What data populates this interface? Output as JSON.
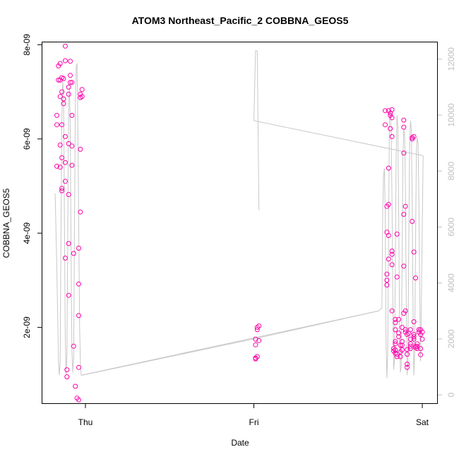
{
  "chart_data": {
    "type": "scatter",
    "title": "ATOM3 Northeast_Pacific_2 COBBNA_GEOS5",
    "xlabel": "Date",
    "ylabel": "COBBNA_GEOS5",
    "x_ticks": [
      "Thu",
      "Fri",
      "Sat"
    ],
    "x_tick_values": [
      0,
      1,
      2
    ],
    "y_left": {
      "range": [
        3.9e-10,
        8.05e-09
      ],
      "ticks": [
        2e-09,
        4e-09,
        6e-09,
        8e-09
      ],
      "tick_labels": [
        "2e-09",
        "4e-09",
        "6e-09",
        "8e-09"
      ]
    },
    "y_right": {
      "range": [
        -300,
        12600
      ],
      "ticks": [
        0,
        2000,
        4000,
        6000,
        8000,
        10000,
        12000
      ],
      "tick_labels": [
        "0",
        "2000",
        "4000",
        "6000",
        "8000",
        "10000",
        "12000"
      ],
      "color": "#c0c0c0"
    },
    "grid": false,
    "series": [
      {
        "kind": "points",
        "axis": "left",
        "color": "#ff00aa",
        "points": [
          [
            -0.17,
            6.5e-09
          ],
          [
            -0.17,
            6.3e-09
          ],
          [
            -0.17,
            5.42e-09
          ],
          [
            -0.16,
            7.55e-09
          ],
          [
            -0.16,
            7.25e-09
          ],
          [
            -0.15,
            7.6e-09
          ],
          [
            -0.15,
            7.25e-09
          ],
          [
            -0.15,
            6.9e-09
          ],
          [
            -0.15,
            5.87e-09
          ],
          [
            -0.15,
            5.4e-09
          ],
          [
            -0.14,
            7.3e-09
          ],
          [
            -0.14,
            7e-09
          ],
          [
            -0.14,
            6.3e-09
          ],
          [
            -0.14,
            5.6e-09
          ],
          [
            -0.14,
            4.95e-09
          ],
          [
            -0.14,
            4.9e-09
          ],
          [
            -0.13,
            7.28e-09
          ],
          [
            -0.13,
            6.85e-09
          ],
          [
            -0.13,
            6.75e-09
          ],
          [
            -0.12,
            7.97e-09
          ],
          [
            -0.12,
            7.66e-09
          ],
          [
            -0.12,
            6.05e-09
          ],
          [
            -0.12,
            5.5e-09
          ],
          [
            -0.12,
            5.1e-09
          ],
          [
            -0.12,
            3.47e-09
          ],
          [
            -0.11,
            1.1e-09
          ],
          [
            -0.11,
            9.5e-10
          ],
          [
            -0.1,
            3.78e-09
          ],
          [
            -0.1,
            2.68e-09
          ],
          [
            -0.1,
            4.82e-09
          ],
          [
            -0.1,
            7.1e-09
          ],
          [
            -0.1,
            6.95e-09
          ],
          [
            -0.1,
            5.9e-09
          ],
          [
            -0.09,
            7.65e-09
          ],
          [
            -0.09,
            7.35e-09
          ],
          [
            -0.09,
            7.2e-09
          ],
          [
            -0.08,
            7.2e-09
          ],
          [
            -0.08,
            6.5e-09
          ],
          [
            -0.08,
            5.85e-09
          ],
          [
            -0.08,
            5.44e-09
          ],
          [
            -0.07,
            3.57e-09
          ],
          [
            -0.07,
            1.6e-09
          ],
          [
            -0.06,
            7.5e-10
          ],
          [
            -0.05,
            5e-10
          ],
          [
            -0.04,
            4.6e-10
          ],
          [
            -0.04,
            1.15e-09
          ],
          [
            -0.04,
            2.25e-09
          ],
          [
            -0.04,
            2.92e-09
          ],
          [
            -0.04,
            3.68e-09
          ],
          [
            -0.03,
            4.45e-09
          ],
          [
            -0.03,
            5.78e-09
          ],
          [
            -0.03,
            6.88e-09
          ],
          [
            -0.03,
            6.95e-09
          ],
          [
            -0.02,
            7.05e-09
          ],
          [
            -0.02,
            6.9e-09
          ],
          [
            1.01,
            1.35e-09
          ],
          [
            1.01,
            1.33e-09
          ],
          [
            1.01,
            1.63e-09
          ],
          [
            1.01,
            1.75e-09
          ],
          [
            1.02,
            1.38e-09
          ],
          [
            1.02,
            1.95e-09
          ],
          [
            1.02,
            2e-09
          ],
          [
            1.03,
            2.03e-09
          ],
          [
            1.03,
            1.72e-09
          ],
          [
            1.78,
            6.6e-09
          ],
          [
            1.78,
            6.3e-09
          ],
          [
            1.79,
            4.57e-09
          ],
          [
            1.79,
            4.02e-09
          ],
          [
            1.79,
            3.13e-09
          ],
          [
            1.79,
            3e-09
          ],
          [
            1.79,
            2.9e-09
          ],
          [
            1.8,
            5.38e-09
          ],
          [
            1.8,
            4.61e-09
          ],
          [
            1.8,
            3.95e-09
          ],
          [
            1.8,
            3.45e-09
          ],
          [
            1.8,
            6.6e-09
          ],
          [
            1.81,
            6.55e-09
          ],
          [
            1.81,
            6.5e-09
          ],
          [
            1.81,
            6.22e-09
          ],
          [
            1.82,
            6.62e-09
          ],
          [
            1.82,
            6.45e-09
          ],
          [
            1.82,
            6.05e-09
          ],
          [
            1.82,
            3.62e-09
          ],
          [
            1.82,
            3.55e-09
          ],
          [
            1.82,
            3.33e-09
          ],
          [
            1.82,
            2.35e-09
          ],
          [
            1.83,
            1.55e-09
          ],
          [
            1.83,
            1.5e-09
          ],
          [
            1.84,
            1.45e-09
          ],
          [
            1.84,
            1.7e-09
          ],
          [
            1.84,
            2.1e-09
          ],
          [
            1.84,
            2.17e-09
          ],
          [
            1.84,
            1.95e-09
          ],
          [
            1.84,
            1.65e-09
          ],
          [
            1.84,
            1.52e-09
          ],
          [
            1.85,
            3.98e-09
          ],
          [
            1.85,
            3.07e-09
          ],
          [
            1.85,
            1.38e-09
          ],
          [
            1.85,
            1.43e-09
          ],
          [
            1.86,
            2.17e-09
          ],
          [
            1.86,
            1.88e-09
          ],
          [
            1.86,
            1.8e-09
          ],
          [
            1.87,
            1.62e-09
          ],
          [
            1.87,
            1.48e-09
          ],
          [
            1.87,
            1.38e-09
          ],
          [
            1.88,
            1.62e-09
          ],
          [
            1.88,
            2e-09
          ],
          [
            1.88,
            1.7e-09
          ],
          [
            1.88,
            1.52e-09
          ],
          [
            1.89,
            6.4e-09
          ],
          [
            1.89,
            5.7e-09
          ],
          [
            1.89,
            4.4e-09
          ],
          [
            1.89,
            3.3e-09
          ],
          [
            1.89,
            2.3e-09
          ],
          [
            1.89,
            6.25e-09
          ],
          [
            1.9,
            4.57e-09
          ],
          [
            1.9,
            2.35e-09
          ],
          [
            1.9,
            1.95e-09
          ],
          [
            1.9,
            1.9e-09
          ],
          [
            1.91,
            1.85e-09
          ],
          [
            1.91,
            1.53e-09
          ],
          [
            1.91,
            1.43e-09
          ],
          [
            1.91,
            1.22e-09
          ],
          [
            1.91,
            1.15e-09
          ],
          [
            1.92,
            1.87e-09
          ],
          [
            1.93,
            1.95e-09
          ],
          [
            1.93,
            1.75e-09
          ],
          [
            1.93,
            1.65e-09
          ],
          [
            1.93,
            1.6e-09
          ],
          [
            1.93,
            1.55e-09
          ],
          [
            1.94,
            6.03e-09
          ],
          [
            1.94,
            6e-09
          ],
          [
            1.94,
            4.25e-09
          ],
          [
            1.95,
            3.6e-09
          ],
          [
            1.95,
            2.12e-09
          ],
          [
            1.95,
            1.85e-09
          ],
          [
            1.95,
            1.8e-09
          ],
          [
            1.95,
            1.75e-09
          ],
          [
            1.95,
            6.05e-09
          ],
          [
            1.96,
            3.05e-09
          ],
          [
            1.96,
            1.6e-09
          ],
          [
            1.96,
            1.57e-09
          ],
          [
            1.97,
            1.65e-09
          ],
          [
            1.97,
            1.55e-09
          ],
          [
            1.97,
            1.6e-09
          ],
          [
            1.98,
            1.95e-09
          ],
          [
            1.98,
            1.9e-09
          ],
          [
            1.99,
            1.85e-09
          ],
          [
            1.99,
            1.95e-09
          ],
          [
            1.99,
            1.55e-09
          ],
          [
            1.99,
            1.42e-09
          ],
          [
            2.0,
            1.9e-09
          ],
          [
            2.0,
            1.75e-09
          ]
        ]
      },
      {
        "kind": "line",
        "axis": "right",
        "color": "#c8c8c8",
        "points": [
          [
            -0.18,
            7200
          ],
          [
            -0.17,
            4500
          ],
          [
            -0.16,
            1200
          ],
          [
            -0.155,
            700
          ],
          [
            -0.15,
            1200
          ],
          [
            -0.145,
            6000
          ],
          [
            -0.14,
            9800
          ],
          [
            -0.135,
            11200
          ],
          [
            -0.13,
            10800
          ],
          [
            -0.125,
            6500
          ],
          [
            -0.12,
            2200
          ],
          [
            -0.115,
            700
          ],
          [
            -0.11,
            1500
          ],
          [
            -0.105,
            6000
          ],
          [
            -0.1,
            10500
          ],
          [
            -0.095,
            11000
          ],
          [
            -0.09,
            9500
          ],
          [
            -0.085,
            5000
          ],
          [
            -0.08,
            1500
          ],
          [
            -0.075,
            800
          ],
          [
            -0.07,
            1300
          ],
          [
            -0.065,
            6000
          ],
          [
            -0.06,
            10500
          ],
          [
            -0.055,
            11700
          ],
          [
            -0.05,
            11850
          ],
          [
            -0.045,
            9500
          ],
          [
            -0.04,
            6000
          ],
          [
            -0.035,
            2500
          ],
          [
            -0.03,
            1200
          ],
          [
            -0.025,
            700
          ],
          [
            1.74,
            3000
          ],
          [
            1.76,
            3100
          ],
          [
            1.765,
            6500
          ],
          [
            1.77,
            7800
          ],
          [
            1.775,
            8100
          ],
          [
            1.78,
            6500
          ],
          [
            1.785,
            2000
          ],
          [
            1.79,
            600
          ],
          [
            1.795,
            1500
          ],
          [
            1.8,
            6000
          ],
          [
            1.805,
            9800
          ],
          [
            1.81,
            10100
          ],
          [
            1.815,
            9500
          ],
          [
            1.82,
            7000
          ],
          [
            1.825,
            3500
          ],
          [
            1.83,
            900
          ],
          [
            1.835,
            1200
          ],
          [
            1.84,
            4500
          ],
          [
            1.845,
            8500
          ],
          [
            1.85,
            10000
          ],
          [
            1.855,
            9600
          ],
          [
            1.86,
            6500
          ],
          [
            1.865,
            2500
          ],
          [
            1.87,
            800
          ],
          [
            1.875,
            1000
          ],
          [
            1.88,
            4500
          ],
          [
            1.885,
            8500
          ],
          [
            1.89,
            9500
          ],
          [
            1.895,
            9300
          ],
          [
            1.9,
            7500
          ],
          [
            1.905,
            3500
          ],
          [
            1.91,
            700
          ],
          [
            1.915,
            1200
          ],
          [
            1.92,
            5500
          ],
          [
            1.925,
            9000
          ],
          [
            1.93,
            9800
          ],
          [
            1.935,
            9500
          ],
          [
            1.94,
            7000
          ],
          [
            1.945,
            3000
          ],
          [
            1.95,
            700
          ],
          [
            1.955,
            1500
          ],
          [
            1.96,
            5500
          ],
          [
            1.965,
            8800
          ],
          [
            1.97,
            9200
          ],
          [
            1.975,
            9000
          ],
          [
            1.98,
            7000
          ],
          [
            1.985,
            3500
          ],
          [
            1.99,
            1200
          ],
          [
            2.0,
            6000
          ],
          [
            2.005,
            8550
          ]
        ]
      },
      {
        "kind": "line",
        "axis": "right",
        "color": "#c8c8c8",
        "points": [
          [
            -0.02,
            700
          ],
          [
            1.0,
            2000
          ],
          [
            1.74,
            3000
          ]
        ]
      },
      {
        "kind": "line",
        "axis": "right",
        "color": "#c8c8c8",
        "points": [
          [
            1.0,
            9800
          ],
          [
            1.01,
            12300
          ],
          [
            1.02,
            12300
          ],
          [
            1.03,
            6600
          ]
        ]
      },
      {
        "kind": "line",
        "axis": "right",
        "color": "#c8c8c8",
        "points": [
          [
            1.0,
            9800
          ],
          [
            2.005,
            8550
          ]
        ]
      }
    ]
  }
}
